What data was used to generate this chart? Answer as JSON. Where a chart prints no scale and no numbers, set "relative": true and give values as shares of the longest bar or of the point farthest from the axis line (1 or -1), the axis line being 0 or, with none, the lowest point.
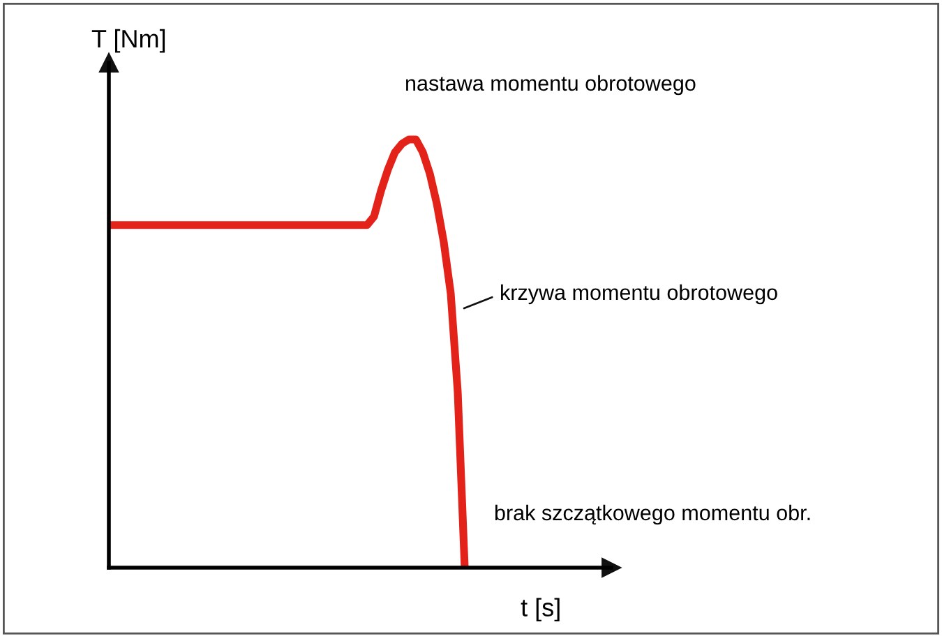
{
  "chart_data": {
    "type": "line",
    "relative": true,
    "xlabel": "t [s]",
    "ylabel": "T [Nm]",
    "categories": [
      null,
      null,
      null,
      null,
      null,
      null,
      null,
      null,
      null,
      null,
      null,
      null,
      null,
      null,
      null,
      null,
      null,
      null,
      null,
      null,
      null,
      null,
      null,
      null,
      null,
      null,
      null,
      null,
      null,
      null,
      null,
      null,
      null,
      null,
      null,
      null,
      null,
      null,
      null,
      null,
      null,
      null,
      null,
      null,
      null,
      null,
      null,
      null,
      null,
      null,
      null,
      null,
      null,
      null,
      null,
      null,
      null,
      null,
      null,
      null,
      null,
      null,
      null,
      null,
      null,
      null,
      null,
      null,
      null,
      null,
      null,
      null,
      null
    ],
    "series": [
      {
        "color": "#e32219",
        "values": [
          0.8,
          0.8,
          0.8,
          0.8,
          0.8,
          0.8,
          0.8,
          0.8,
          0.8,
          0.8,
          0.8,
          0.8,
          0.8,
          0.8,
          0.8,
          0.8,
          0.8,
          0.8,
          0.8,
          0.8,
          0.8,
          0.8,
          0.8,
          0.8,
          0.8,
          0.8,
          0.8,
          0.8,
          0.8,
          0.8,
          0.8,
          0.8,
          0.8,
          0.8,
          0.8,
          0.8,
          0.8,
          0.8,
          0.82,
          0.88,
          0.93,
          0.97,
          0.99,
          1.0,
          1.0,
          0.97,
          0.92,
          0.85,
          0.76,
          0.64,
          0.41,
          0,
          null,
          null,
          null,
          null,
          null,
          null,
          null,
          null,
          null,
          null,
          null,
          null,
          null,
          null,
          null,
          null,
          null,
          null,
          null,
          null,
          null
        ]
      }
    ],
    "annotations": [
      "nastawa momentu obrotowego",
      "krzywa momentu obrotowego",
      "brak szczątkowego momentu obr."
    ]
  }
}
